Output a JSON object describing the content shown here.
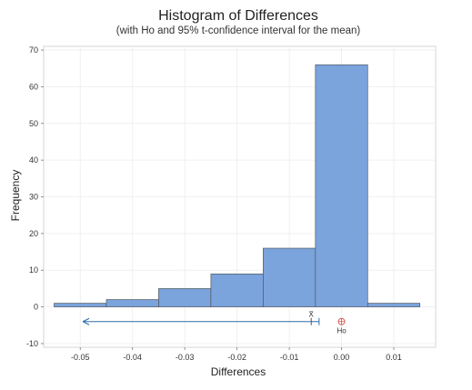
{
  "chart_data": {
    "type": "histogram",
    "title": "Histogram of Differences",
    "subtitle": "(with Ho and 95% t-confidence interval for the mean)",
    "xlabel": "Differences",
    "ylabel": "Frequency",
    "xlim": [
      -0.057,
      0.018
    ],
    "ylim": [
      -11,
      71
    ],
    "xticks": [
      -0.05,
      -0.04,
      -0.03,
      -0.02,
      -0.01,
      0.0,
      0.01
    ],
    "xtick_labels": [
      "-0.05",
      "-0.04",
      "-0.03",
      "-0.02",
      "-0.01",
      "0.00",
      "0.01"
    ],
    "yticks": [
      -10,
      0,
      10,
      20,
      30,
      40,
      50,
      60,
      70
    ],
    "ytick_labels": [
      "-10",
      "0",
      "10",
      "20",
      "30",
      "40",
      "50",
      "60",
      "70"
    ],
    "bins": [
      {
        "start": -0.055,
        "end": -0.045,
        "count": 1
      },
      {
        "start": -0.045,
        "end": -0.035,
        "count": 2
      },
      {
        "start": -0.035,
        "end": -0.025,
        "count": 5
      },
      {
        "start": -0.025,
        "end": -0.015,
        "count": 9
      },
      {
        "start": -0.015,
        "end": -0.005,
        "count": 16
      },
      {
        "start": -0.005,
        "end": 0.005,
        "count": 66
      },
      {
        "start": 0.005,
        "end": 0.015,
        "count": 1
      }
    ],
    "mean": -0.0058,
    "confidence_interval": {
      "lower": "-inf",
      "upper": -0.0043,
      "y": -4,
      "arrow_to": -0.0495
    },
    "h0": {
      "value": 0.0,
      "y": -4,
      "label": "Ho"
    },
    "mean_label": "X̄",
    "bar_color": "#7ba3dc",
    "bar_edge": "#4a4a4a",
    "ci_color": "#2e6fa7",
    "h0_color": "#d9534f",
    "grid": true
  }
}
